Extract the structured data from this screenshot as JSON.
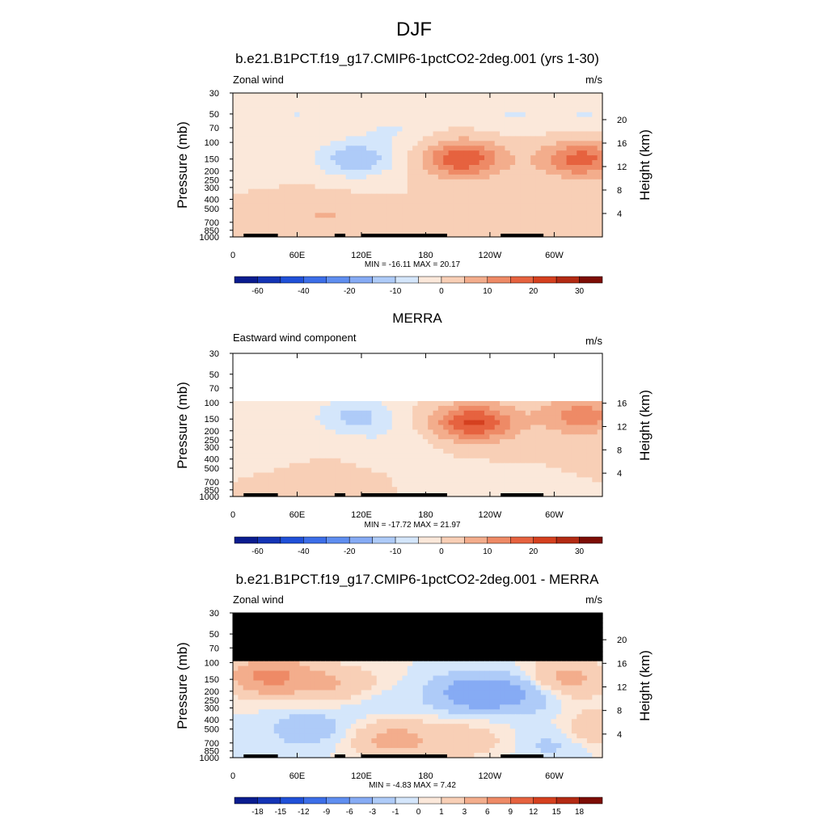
{
  "figure": {
    "title": "DJF"
  },
  "chart_data": [
    {
      "type": "heatmap",
      "title": "b.e21.B1PCT.f19_g17.CMIP6-1pctCO2-2deg.001 (yrs 1-30)",
      "left_label": "Zonal wind",
      "units": "m/s",
      "xlabel": "",
      "ylabel": "Pressure (mb)",
      "y2label": "Height (km)",
      "x_ticks": [
        "0",
        "60E",
        "120E",
        "180",
        "120W",
        "60W"
      ],
      "y_ticks": [
        "30",
        "50",
        "70",
        "100",
        "150",
        "200",
        "250",
        "300",
        "400",
        "500",
        "700",
        "850",
        "1000"
      ],
      "y2_ticks": [
        "20",
        "16",
        "12",
        "8",
        "4"
      ],
      "stats": "MIN = -16.11  MAX =  20.17",
      "colorbar_labels": [
        "-60",
        "-40",
        "-20",
        "-10",
        "0",
        "10",
        "20",
        "30"
      ],
      "colorbar_levels": [
        -70,
        -60,
        -50,
        -40,
        -30,
        -20,
        -15,
        -10,
        -5,
        0,
        5,
        10,
        15,
        20,
        25,
        30
      ],
      "fields": [
        {
          "lon": 115,
          "p": 150,
          "value": -14
        },
        {
          "lon": 215,
          "p": 150,
          "value": 19
        },
        {
          "lon": 325,
          "p": 150,
          "value": 17
        },
        {
          "lon": 60,
          "p": 50,
          "value": -5
        },
        {
          "lon": 150,
          "p": 70,
          "value": -5
        },
        {
          "lon": 260,
          "p": 50,
          "value": -5
        },
        {
          "lon": 330,
          "p": 50,
          "value": -5
        },
        {
          "lon": 90,
          "p": 600,
          "value": 5
        },
        {
          "lon": 15,
          "p": 250,
          "value": -3
        },
        {
          "lon": 30,
          "p": 450,
          "value": 4
        }
      ]
    },
    {
      "type": "heatmap",
      "title": "MERRA",
      "left_label": "Eastward wind component",
      "units": "m/s",
      "xlabel": "",
      "ylabel": "Pressure (mb)",
      "y2label": "Height (km)",
      "x_ticks": [
        "0",
        "60E",
        "120E",
        "180",
        "120W",
        "60W"
      ],
      "y_ticks": [
        "30",
        "50",
        "70",
        "100",
        "150",
        "200",
        "250",
        "300",
        "400",
        "500",
        "700",
        "850",
        "1000"
      ],
      "y2_ticks": [
        "16",
        "12",
        "8",
        "4"
      ],
      "stats": "MIN = -17.72  MAX =  21.97",
      "colorbar_labels": [
        "-60",
        "-40",
        "-20",
        "-10",
        "0",
        "10",
        "20",
        "30"
      ],
      "colorbar_levels": [
        -70,
        -60,
        -50,
        -40,
        -30,
        -20,
        -15,
        -10,
        -5,
        0,
        5,
        10,
        15,
        20,
        25,
        30
      ],
      "data_top_p": 100,
      "fields": [
        {
          "lon": 115,
          "p": 140,
          "value": -12
        },
        {
          "lon": 225,
          "p": 165,
          "value": 21
        },
        {
          "lon": 325,
          "p": 140,
          "value": 13
        },
        {
          "lon": 30,
          "p": 250,
          "value": -5
        },
        {
          "lon": 90,
          "p": 800,
          "value": 5
        },
        {
          "lon": 210,
          "p": 800,
          "value": -4
        },
        {
          "lon": 150,
          "p": 300,
          "value": -4
        }
      ]
    },
    {
      "type": "heatmap",
      "title": "b.e21.B1PCT.f19_g17.CMIP6-1pctCO2-2deg.001 - MERRA",
      "left_label": "Zonal wind",
      "units": "m/s",
      "xlabel": "",
      "ylabel": "Pressure (mb)",
      "y2label": "Height (km)",
      "x_ticks": [
        "0",
        "60E",
        "120E",
        "180",
        "120W",
        "60W"
      ],
      "y_ticks": [
        "30",
        "50",
        "70",
        "100",
        "150",
        "200",
        "250",
        "300",
        "400",
        "500",
        "700",
        "850",
        "1000"
      ],
      "y2_ticks": [
        "20",
        "16",
        "12",
        "8",
        "4"
      ],
      "stats": "MIN =  -4.83  MAX =   7.42",
      "colorbar_labels": [
        "-18",
        "-15",
        "-12",
        "-9",
        "-6",
        "-3",
        "-1",
        "0",
        "1",
        "3",
        "6",
        "9",
        "12",
        "15",
        "18"
      ],
      "colorbar_levels": [
        -21,
        -18,
        -15,
        -12,
        -9,
        -6,
        -3,
        -1,
        0,
        1,
        3,
        6,
        9,
        12,
        15,
        18
      ],
      "data_top_p": 100,
      "fields": [
        {
          "lon": 35,
          "p": 140,
          "value": 7
        },
        {
          "lon": 225,
          "p": 210,
          "value": -4.8
        },
        {
          "lon": 270,
          "p": 210,
          "value": -3
        },
        {
          "lon": 310,
          "p": 150,
          "value": 4
        },
        {
          "lon": 100,
          "p": 170,
          "value": 3
        },
        {
          "lon": 130,
          "p": 250,
          "value": -1
        },
        {
          "lon": 70,
          "p": 500,
          "value": -2
        },
        {
          "lon": 150,
          "p": 650,
          "value": 4
        },
        {
          "lon": 220,
          "p": 650,
          "value": 2
        },
        {
          "lon": 300,
          "p": 700,
          "value": -1.5
        },
        {
          "lon": 345,
          "p": 500,
          "value": 3
        }
      ]
    }
  ]
}
